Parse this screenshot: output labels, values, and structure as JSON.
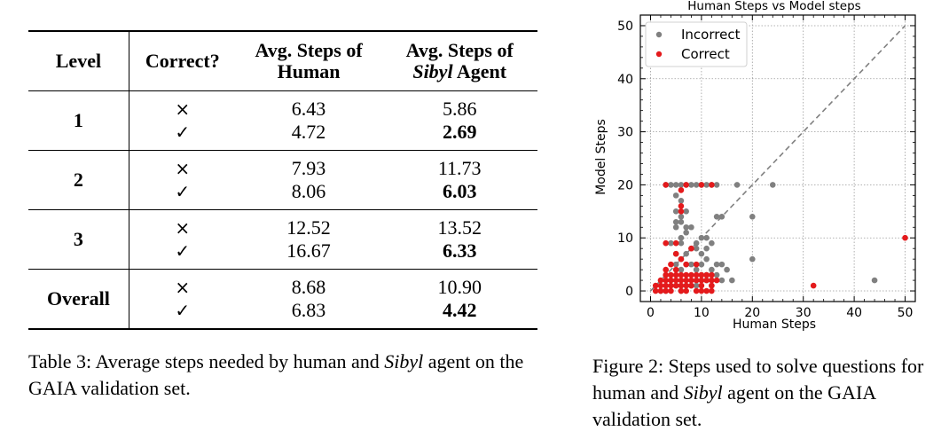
{
  "table": {
    "headers": {
      "level": "Level",
      "correct": "Correct?",
      "human_line1": "Avg. Steps of",
      "human_line2": "Human",
      "agent_line1": "Avg. Steps of",
      "agent_line2_italic": "Sibyl",
      "agent_line2_rest": " Agent"
    },
    "symbols": {
      "incorrect": "×",
      "correct": "✓"
    },
    "rows": [
      {
        "level": "1",
        "incorrect": {
          "human": "6.43",
          "agent": "5.86"
        },
        "correct": {
          "human": "4.72",
          "agent": "2.69"
        }
      },
      {
        "level": "2",
        "incorrect": {
          "human": "7.93",
          "agent": "11.73"
        },
        "correct": {
          "human": "8.06",
          "agent": "6.03"
        }
      },
      {
        "level": "3",
        "incorrect": {
          "human": "12.52",
          "agent": "13.52"
        },
        "correct": {
          "human": "16.67",
          "agent": "6.33"
        }
      },
      {
        "level": "Overall",
        "incorrect": {
          "human": "8.68",
          "agent": "10.90"
        },
        "correct": {
          "human": "6.83",
          "agent": "4.42"
        }
      }
    ],
    "caption": {
      "prefix": "Table 3:  Average steps needed by human and ",
      "italic": "Sibyl",
      "suffix": " agent on the GAIA validation set."
    }
  },
  "figure": {
    "caption": {
      "prefix": "Figure 2: Steps used to solve questions for human and ",
      "italic": "Sibyl",
      "suffix": " agent on the GAIA validation set."
    }
  },
  "chart_data": {
    "type": "scatter",
    "title": "Human Steps vs Model steps",
    "xlabel": "Human Steps",
    "ylabel": "Model Steps",
    "xlim": [
      -2,
      52
    ],
    "ylim": [
      -2,
      52
    ],
    "xticks": [
      0,
      10,
      20,
      30,
      40,
      50
    ],
    "yticks": [
      0,
      10,
      20,
      30,
      40,
      50
    ],
    "grid": true,
    "legend_position": "top-left",
    "reference_line": {
      "style": "dashed",
      "from": [
        0,
        0
      ],
      "to": [
        50,
        50
      ]
    },
    "series": [
      {
        "name": "Incorrect",
        "color": "#808080",
        "points": [
          [
            3,
            20
          ],
          [
            4,
            20
          ],
          [
            5,
            20
          ],
          [
            6,
            20
          ],
          [
            7,
            20
          ],
          [
            8,
            20
          ],
          [
            9,
            20
          ],
          [
            10,
            20
          ],
          [
            11,
            20
          ],
          [
            12,
            20
          ],
          [
            13,
            20
          ],
          [
            17,
            20
          ],
          [
            24,
            20
          ],
          [
            5,
            18
          ],
          [
            6,
            17
          ],
          [
            7,
            15
          ],
          [
            5,
            15
          ],
          [
            6,
            14
          ],
          [
            5,
            13
          ],
          [
            6,
            13
          ],
          [
            7,
            12
          ],
          [
            5,
            12
          ],
          [
            8,
            12
          ],
          [
            6,
            10
          ],
          [
            7,
            11
          ],
          [
            13,
            14
          ],
          [
            14,
            14
          ],
          [
            20,
            14
          ],
          [
            4,
            9
          ],
          [
            6,
            9
          ],
          [
            8,
            8
          ],
          [
            9,
            9
          ],
          [
            5,
            7
          ],
          [
            6,
            6
          ],
          [
            7,
            7
          ],
          [
            10,
            10
          ],
          [
            11,
            10
          ],
          [
            9,
            8
          ],
          [
            10,
            7
          ],
          [
            11,
            6
          ],
          [
            12,
            9
          ],
          [
            11,
            8
          ],
          [
            5,
            5
          ],
          [
            6,
            4
          ],
          [
            7,
            5
          ],
          [
            8,
            5
          ],
          [
            9,
            4
          ],
          [
            10,
            5
          ],
          [
            13,
            5
          ],
          [
            14,
            5
          ],
          [
            12,
            4
          ],
          [
            15,
            4
          ],
          [
            10,
            3
          ],
          [
            11,
            3
          ],
          [
            13,
            3
          ],
          [
            16,
            2
          ],
          [
            20,
            6
          ],
          [
            3,
            3
          ],
          [
            4,
            2
          ],
          [
            5,
            1
          ],
          [
            6,
            1
          ],
          [
            7,
            1
          ],
          [
            8,
            1
          ],
          [
            9,
            2
          ],
          [
            10,
            2
          ],
          [
            11,
            2
          ],
          [
            12,
            2
          ],
          [
            14,
            2
          ],
          [
            2,
            0
          ],
          [
            3,
            0
          ],
          [
            6,
            0
          ],
          [
            9,
            1
          ],
          [
            12,
            1
          ],
          [
            44,
            2
          ]
        ]
      },
      {
        "name": "Correct",
        "color": "#e41a1c",
        "points": [
          [
            3,
            20
          ],
          [
            7,
            20
          ],
          [
            10,
            20
          ],
          [
            12,
            20
          ],
          [
            6,
            19
          ],
          [
            6,
            16
          ],
          [
            6,
            15
          ],
          [
            3,
            9
          ],
          [
            5,
            9
          ],
          [
            8,
            8
          ],
          [
            5,
            7
          ],
          [
            6,
            6
          ],
          [
            4,
            5
          ],
          [
            7,
            5
          ],
          [
            9,
            5
          ],
          [
            3,
            4
          ],
          [
            5,
            4
          ],
          [
            3,
            3
          ],
          [
            4,
            3
          ],
          [
            5,
            3
          ],
          [
            6,
            3
          ],
          [
            7,
            3
          ],
          [
            8,
            3
          ],
          [
            9,
            3
          ],
          [
            10,
            3
          ],
          [
            11,
            3
          ],
          [
            12,
            3
          ],
          [
            2,
            2
          ],
          [
            3,
            2
          ],
          [
            4,
            2
          ],
          [
            5,
            2
          ],
          [
            6,
            2
          ],
          [
            7,
            2
          ],
          [
            8,
            2
          ],
          [
            9,
            2
          ],
          [
            10,
            2
          ],
          [
            11,
            2
          ],
          [
            12,
            2
          ],
          [
            13,
            2
          ],
          [
            1,
            1
          ],
          [
            2,
            1
          ],
          [
            3,
            1
          ],
          [
            4,
            1
          ],
          [
            5,
            1
          ],
          [
            6,
            1
          ],
          [
            7,
            1
          ],
          [
            8,
            1
          ],
          [
            10,
            1
          ],
          [
            12,
            1
          ],
          [
            1,
            0
          ],
          [
            2,
            0
          ],
          [
            3,
            0
          ],
          [
            4,
            0
          ],
          [
            6,
            0
          ],
          [
            7,
            0
          ],
          [
            9,
            0
          ],
          [
            10,
            0
          ],
          [
            11,
            0
          ],
          [
            12,
            0
          ],
          [
            32,
            1
          ],
          [
            50,
            10
          ]
        ]
      }
    ]
  }
}
